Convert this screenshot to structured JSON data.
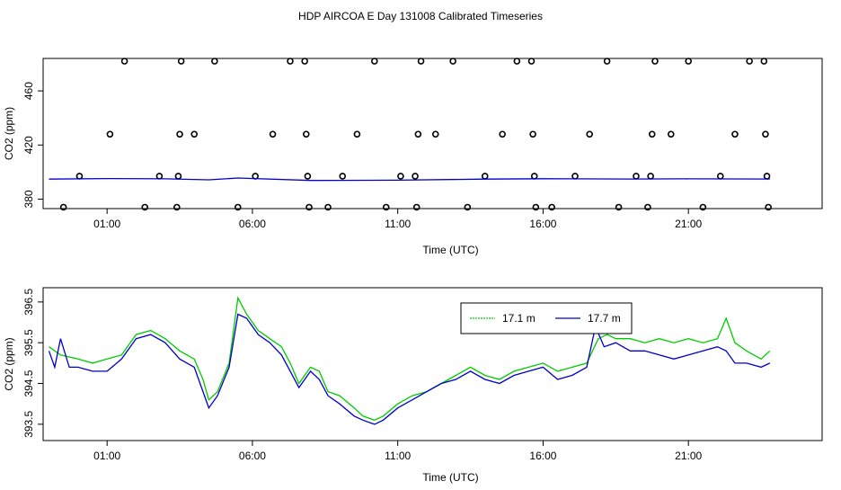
{
  "title": "HDP AIRCOA E  Day 131008  Calibrated Timeseries",
  "colors": {
    "green": "#00cc00",
    "blue": "#0000cc",
    "axis": "#000000"
  },
  "chart_data": [
    {
      "type": "scatter",
      "xlabel": "Time (UTC)",
      "ylabel": "CO2 (ppm)",
      "xticks": [
        1,
        6,
        11,
        16,
        21
      ],
      "xtick_labels": [
        "01:00",
        "06:00",
        "11:00",
        "16:00",
        "21:00"
      ],
      "yticks": [
        380,
        420,
        460
      ],
      "xlim": [
        -1.2,
        25.6
      ],
      "ylim": [
        373,
        484
      ],
      "series": [
        {
          "markers": "open-circle",
          "points": [
            [
              -0.5,
              374
            ],
            [
              0.05,
              397
            ],
            [
              1.1,
              428
            ],
            [
              1.6,
              482
            ],
            [
              2.3,
              374
            ],
            [
              2.8,
              397
            ],
            [
              3.4,
              374
            ],
            [
              3.45,
              397
            ],
            [
              3.5,
              428
            ],
            [
              3.55,
              482
            ],
            [
              4.0,
              428
            ],
            [
              4.7,
              482
            ],
            [
              5.5,
              374
            ],
            [
              6.1,
              397
            ],
            [
              6.7,
              428
            ],
            [
              7.3,
              482
            ],
            [
              7.8,
              482
            ],
            [
              7.85,
              428
            ],
            [
              7.9,
              397
            ],
            [
              7.95,
              374
            ],
            [
              8.6,
              374
            ],
            [
              9.1,
              397
            ],
            [
              9.6,
              428
            ],
            [
              10.2,
              482
            ],
            [
              10.6,
              374
            ],
            [
              11.1,
              397
            ],
            [
              11.6,
              397
            ],
            [
              11.65,
              374
            ],
            [
              11.7,
              428
            ],
            [
              11.8,
              482
            ],
            [
              12.3,
              428
            ],
            [
              12.9,
              482
            ],
            [
              13.4,
              374
            ],
            [
              14.0,
              397
            ],
            [
              14.6,
              428
            ],
            [
              15.1,
              482
            ],
            [
              15.6,
              482
            ],
            [
              15.65,
              428
            ],
            [
              15.7,
              397
            ],
            [
              15.75,
              374
            ],
            [
              16.3,
              374
            ],
            [
              17.1,
              397
            ],
            [
              17.6,
              428
            ],
            [
              18.2,
              482
            ],
            [
              18.6,
              374
            ],
            [
              19.2,
              397
            ],
            [
              19.6,
              374
            ],
            [
              19.7,
              397
            ],
            [
              19.75,
              428
            ],
            [
              19.85,
              482
            ],
            [
              20.4,
              428
            ],
            [
              21.0,
              482
            ],
            [
              21.5,
              374
            ],
            [
              22.1,
              397
            ],
            [
              22.6,
              428
            ],
            [
              23.1,
              482
            ],
            [
              23.6,
              482
            ],
            [
              23.65,
              428
            ],
            [
              23.7,
              397
            ],
            [
              23.75,
              374
            ]
          ]
        },
        {
          "name": "",
          "color": "#0000cc",
          "points": [
            [
              -1.0,
              394.8
            ],
            [
              1.0,
              395.2
            ],
            [
              3.0,
              395.0
            ],
            [
              4.5,
              394.3
            ],
            [
              5.5,
              395.6
            ],
            [
              8.0,
              393.8
            ],
            [
              11.0,
              394.0
            ],
            [
              14.0,
              394.8
            ],
            [
              16.0,
              395.1
            ],
            [
              19.0,
              394.9
            ],
            [
              21.0,
              395.0
            ],
            [
              23.8,
              394.9
            ]
          ]
        }
      ]
    },
    {
      "type": "line",
      "xlabel": "Time (UTC)",
      "ylabel": "CO2 (ppm)",
      "xticks": [
        1,
        6,
        11,
        16,
        21
      ],
      "xtick_labels": [
        "01:00",
        "06:00",
        "11:00",
        "16:00",
        "21:00"
      ],
      "yticks": [
        393.5,
        394.5,
        395.5,
        396.5
      ],
      "ytick_labels": [
        "393.5",
        "394.5",
        "395.5",
        "396.5"
      ],
      "xlim": [
        -1.2,
        25.6
      ],
      "ylim": [
        393.1,
        396.85
      ],
      "legend": {
        "position": "top-right"
      },
      "series": [
        {
          "name": "17.1 m",
          "color": "#00cc00",
          "points": [
            [
              -1.0,
              395.4
            ],
            [
              -0.6,
              395.2
            ],
            [
              0.0,
              395.1
            ],
            [
              0.5,
              395.0
            ],
            [
              1.0,
              395.1
            ],
            [
              1.5,
              395.2
            ],
            [
              2.0,
              395.7
            ],
            [
              2.5,
              395.8
            ],
            [
              3.0,
              395.6
            ],
            [
              3.5,
              395.3
            ],
            [
              4.0,
              395.1
            ],
            [
              4.3,
              394.6
            ],
            [
              4.5,
              394.1
            ],
            [
              4.8,
              394.3
            ],
            [
              5.2,
              395.0
            ],
            [
              5.5,
              396.6
            ],
            [
              5.8,
              396.2
            ],
            [
              6.2,
              395.8
            ],
            [
              6.6,
              395.6
            ],
            [
              7.0,
              395.4
            ],
            [
              7.3,
              395.0
            ],
            [
              7.6,
              394.5
            ],
            [
              8.0,
              394.9
            ],
            [
              8.3,
              394.8
            ],
            [
              8.6,
              394.3
            ],
            [
              9.0,
              394.2
            ],
            [
              9.5,
              393.9
            ],
            [
              9.8,
              393.7
            ],
            [
              10.2,
              393.6
            ],
            [
              10.5,
              393.7
            ],
            [
              11.0,
              394.0
            ],
            [
              11.5,
              394.2
            ],
            [
              12.0,
              394.3
            ],
            [
              12.5,
              394.5
            ],
            [
              13.0,
              394.7
            ],
            [
              13.5,
              394.9
            ],
            [
              14.0,
              394.7
            ],
            [
              14.5,
              394.6
            ],
            [
              15.0,
              394.8
            ],
            [
              15.5,
              394.9
            ],
            [
              16.0,
              395.0
            ],
            [
              16.5,
              394.8
            ],
            [
              17.0,
              394.9
            ],
            [
              17.5,
              395.0
            ],
            [
              17.9,
              395.6
            ],
            [
              18.2,
              395.7
            ],
            [
              18.5,
              395.6
            ],
            [
              19.0,
              395.6
            ],
            [
              19.5,
              395.5
            ],
            [
              20.0,
              395.6
            ],
            [
              20.5,
              395.5
            ],
            [
              21.0,
              395.6
            ],
            [
              21.5,
              395.5
            ],
            [
              22.0,
              395.6
            ],
            [
              22.3,
              396.1
            ],
            [
              22.6,
              395.5
            ],
            [
              23.0,
              395.3
            ],
            [
              23.5,
              395.1
            ],
            [
              23.8,
              395.3
            ]
          ]
        },
        {
          "name": "17.7 m",
          "color": "#0000cc",
          "points": [
            [
              -1.0,
              395.3
            ],
            [
              -0.8,
              394.9
            ],
            [
              -0.6,
              395.6
            ],
            [
              -0.3,
              394.9
            ],
            [
              0.0,
              394.9
            ],
            [
              0.5,
              394.8
            ],
            [
              1.0,
              394.8
            ],
            [
              1.5,
              395.1
            ],
            [
              2.0,
              395.6
            ],
            [
              2.5,
              395.7
            ],
            [
              3.0,
              395.5
            ],
            [
              3.5,
              395.1
            ],
            [
              4.0,
              394.9
            ],
            [
              4.3,
              394.3
            ],
            [
              4.5,
              393.9
            ],
            [
              4.8,
              394.2
            ],
            [
              5.2,
              394.9
            ],
            [
              5.5,
              396.2
            ],
            [
              5.8,
              396.1
            ],
            [
              6.2,
              395.7
            ],
            [
              6.6,
              395.5
            ],
            [
              7.0,
              395.2
            ],
            [
              7.3,
              394.8
            ],
            [
              7.6,
              394.4
            ],
            [
              8.0,
              394.8
            ],
            [
              8.3,
              394.6
            ],
            [
              8.6,
              394.2
            ],
            [
              9.0,
              394.0
            ],
            [
              9.5,
              393.7
            ],
            [
              9.8,
              393.6
            ],
            [
              10.2,
              393.5
            ],
            [
              10.5,
              393.6
            ],
            [
              11.0,
              393.9
            ],
            [
              11.5,
              394.1
            ],
            [
              12.0,
              394.3
            ],
            [
              12.5,
              394.5
            ],
            [
              13.0,
              394.6
            ],
            [
              13.5,
              394.8
            ],
            [
              14.0,
              394.6
            ],
            [
              14.5,
              394.5
            ],
            [
              15.0,
              394.7
            ],
            [
              15.5,
              394.8
            ],
            [
              16.0,
              394.9
            ],
            [
              16.5,
              394.6
            ],
            [
              17.0,
              394.7
            ],
            [
              17.5,
              394.9
            ],
            [
              17.8,
              395.9
            ],
            [
              18.1,
              395.4
            ],
            [
              18.5,
              395.5
            ],
            [
              19.0,
              395.3
            ],
            [
              19.5,
              395.3
            ],
            [
              20.0,
              395.2
            ],
            [
              20.5,
              395.1
            ],
            [
              21.0,
              395.2
            ],
            [
              21.5,
              395.3
            ],
            [
              22.0,
              395.4
            ],
            [
              22.3,
              395.3
            ],
            [
              22.6,
              395.0
            ],
            [
              23.0,
              395.0
            ],
            [
              23.5,
              394.9
            ],
            [
              23.8,
              395.0
            ]
          ]
        }
      ]
    }
  ]
}
